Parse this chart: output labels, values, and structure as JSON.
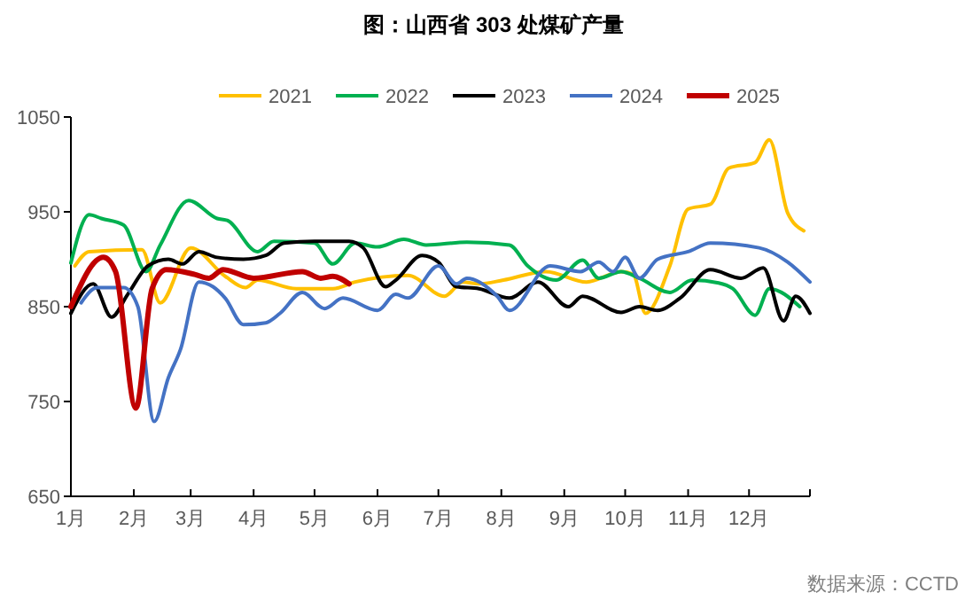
{
  "chart_data": {
    "type": "line",
    "title": "图：山西省 303 处煤矿产量",
    "annotations": [
      "数据来源：CCTD"
    ],
    "xlim": [
      "--01-01",
      "--12-31"
    ],
    "xticks": [
      {
        "value": "--01-01",
        "label": "1月"
      },
      {
        "value": "--02-01",
        "label": "2月"
      },
      {
        "value": "--03-01",
        "label": "3月"
      },
      {
        "value": "--04-01",
        "label": "4月"
      },
      {
        "value": "--05-01",
        "label": "5月"
      },
      {
        "value": "--06-01",
        "label": "6月"
      },
      {
        "value": "--07-01",
        "label": "7月"
      },
      {
        "value": "--08-01",
        "label": "8月"
      },
      {
        "value": "--09-01",
        "label": "9月"
      },
      {
        "value": "--10-01",
        "label": "10月"
      },
      {
        "value": "--11-01",
        "label": "11月"
      },
      {
        "value": "--12-01",
        "label": "12月"
      },
      {
        "value": "--12-31",
        "label": null
      }
    ],
    "ylim": [
      650,
      1050
    ],
    "yticks": [
      650,
      750,
      850,
      950,
      1050
    ],
    "legend": "top",
    "marker": "none",
    "line_style": "solid",
    "series": [
      {
        "name": "2021",
        "color": "#ffc000",
        "x": [
          "--01-03",
          "--01-10",
          "--02-05",
          "--02-14",
          "--03-01",
          "--03-18",
          "--03-28",
          "--04-03",
          "--04-22",
          "--05-10",
          "--05-21",
          "--06-16",
          "--07-04",
          "--07-13",
          "--07-21",
          "--08-02",
          "--08-23",
          "--09-12",
          "--09-29",
          "--10-05",
          "--10-11",
          "--10-23",
          "--11-01",
          "--11-12",
          "--11-21",
          "--12-04",
          "--12-11",
          "--12-20",
          "--12-28"
        ],
        "values": [
          893,
          908,
          910,
          854,
          912,
          882,
          870,
          878,
          869,
          869,
          876,
          883,
          861,
          876,
          874,
          878,
          887,
          876,
          887,
          884,
          843,
          893,
          953,
          958,
          996,
          1002,
          1026,
          949,
          930
        ]
      },
      {
        "name": "2022",
        "color": "#00b050",
        "x": [
          "--01-01",
          "--01-10",
          "--01-16",
          "--01-27",
          "--02-07",
          "--02-14",
          "--02-28",
          "--03-14",
          "--03-19",
          "--04-03",
          "--04-11",
          "--05-01",
          "--05-10",
          "--05-21",
          "--06-01",
          "--06-14",
          "--06-25",
          "--07-15",
          "--08-05",
          "--08-14",
          "--08-28",
          "--09-10",
          "--09-18",
          "--09-29",
          "--10-08",
          "--10-23",
          "--11-03",
          "--11-16",
          "--11-23",
          "--12-04",
          "--12-11",
          "--12-26"
        ],
        "values": [
          896,
          947,
          943,
          936,
          887,
          915,
          962,
          943,
          941,
          908,
          919,
          917,
          895,
          917,
          913,
          921,
          915,
          918,
          915,
          893,
          878,
          899,
          880,
          887,
          880,
          865,
          878,
          875,
          869,
          841,
          869,
          850
        ]
      },
      {
        "name": "2023",
        "color": "#000000",
        "x": [
          "--01-01",
          "--01-12",
          "--01-21",
          "--01-29",
          "--02-08",
          "--02-18",
          "--02-25",
          "--03-05",
          "--03-14",
          "--03-27",
          "--04-07",
          "--04-16",
          "--05-01",
          "--05-18",
          "--05-25",
          "--06-05",
          "--06-10",
          "--06-23",
          "--07-01",
          "--07-10",
          "--07-21",
          "--08-05",
          "--08-19",
          "--09-03",
          "--09-10",
          "--09-29",
          "--10-08",
          "--10-17",
          "--10-28",
          "--11-12",
          "--11-27",
          "--12-08",
          "--12-18",
          "--12-24",
          "--12-31"
        ],
        "values": [
          843,
          874,
          839,
          863,
          893,
          900,
          895,
          908,
          902,
          900,
          904,
          917,
          919,
          919,
          912,
          871,
          878,
          904,
          897,
          871,
          869,
          859,
          876,
          850,
          861,
          844,
          850,
          846,
          859,
          889,
          880,
          891,
          835,
          861,
          843
        ]
      },
      {
        "name": "2024",
        "color": "#4472c4",
        "x": [
          "--01-06",
          "--01-14",
          "--01-27",
          "--02-03",
          "--02-11",
          "--02-18",
          "--02-24",
          "--03-05",
          "--03-12",
          "--03-18",
          "--03-27",
          "--04-07",
          "--04-14",
          "--04-25",
          "--05-06",
          "--05-15",
          "--06-01",
          "--06-10",
          "--06-16",
          "--07-01",
          "--07-10",
          "--07-15",
          "--07-30",
          "--08-05",
          "--08-25",
          "--09-09",
          "--09-18",
          "--09-25",
          "--10-01",
          "--10-08",
          "--10-17",
          "--11-01",
          "--11-12",
          "--12-06",
          "--12-20",
          "--12-31"
        ],
        "values": [
          854,
          870,
          870,
          850,
          729,
          775,
          805,
          876,
          871,
          859,
          831,
          833,
          843,
          865,
          848,
          859,
          846,
          863,
          859,
          893,
          874,
          880,
          861,
          846,
          893,
          887,
          897,
          887,
          902,
          880,
          900,
          908,
          917,
          912,
          897,
          876
        ]
      },
      {
        "name": "2025",
        "color": "#c00000",
        "x": [
          "--01-01",
          "--01-17",
          "--01-23",
          "--02-02",
          "--02-10",
          "--02-17",
          "--03-03",
          "--03-10",
          "--03-17",
          "--04-01",
          "--04-25",
          "--05-04",
          "--05-10",
          "--05-18"
        ],
        "values": [
          850,
          902,
          887,
          743,
          869,
          889,
          884,
          880,
          889,
          880,
          887,
          880,
          882,
          874
        ]
      }
    ]
  }
}
